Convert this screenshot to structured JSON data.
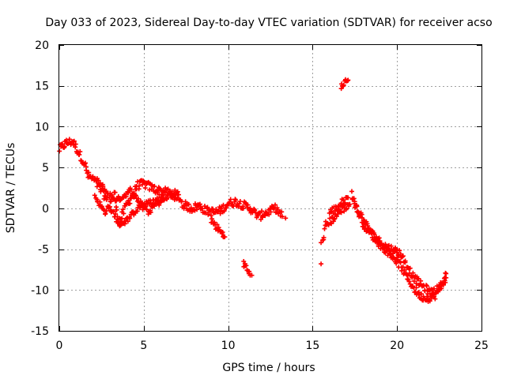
{
  "chart_data": {
    "type": "scatter",
    "title": "Day 033 of 2023, Sidereal Day-to-day VTEC variation (SDTVAR) for receiver acso",
    "xlabel": "GPS time / hours",
    "ylabel": "SDTVAR / TECUs",
    "xlim": [
      0,
      25
    ],
    "ylim": [
      -15,
      20
    ],
    "xticks": [
      0,
      5,
      10,
      15,
      20,
      25
    ],
    "yticks": [
      -15,
      -10,
      -5,
      0,
      5,
      10,
      15,
      20
    ],
    "grid": true,
    "marker": "plus",
    "color": "#ff0000",
    "series": [
      {
        "name": "SDTVAR",
        "anchors": [
          [
            0.0,
            7.2
          ],
          [
            0.4,
            8.0
          ],
          [
            0.8,
            8.2
          ],
          [
            1.1,
            7.0
          ],
          [
            1.5,
            5.5
          ],
          [
            1.7,
            4.0
          ],
          [
            2.0,
            3.6
          ],
          [
            2.3,
            2.8
          ],
          [
            2.7,
            1.5
          ],
          [
            3.0,
            0.0
          ],
          [
            3.3,
            -1.0
          ],
          [
            3.6,
            -1.5
          ],
          [
            4.0,
            0.5
          ],
          [
            4.3,
            1.5
          ],
          [
            4.6,
            2.8
          ],
          [
            5.0,
            3.0
          ],
          [
            5.4,
            2.6
          ],
          [
            5.8,
            2.2
          ],
          [
            6.3,
            2.0
          ],
          [
            6.7,
            1.8
          ],
          [
            7.0,
            1.7
          ],
          [
            7.3,
            0.5
          ],
          [
            7.8,
            0.0
          ],
          [
            8.3,
            0.3
          ],
          [
            8.7,
            -0.3
          ],
          [
            9.2,
            -0.5
          ],
          [
            9.6,
            -0.2
          ],
          [
            10.0,
            0.6
          ],
          [
            10.4,
            0.8
          ],
          [
            10.8,
            0.5
          ],
          [
            11.3,
            0.0
          ],
          [
            11.8,
            -1.0
          ],
          [
            12.3,
            -0.5
          ],
          [
            12.8,
            0.0
          ],
          [
            13.2,
            -1.0
          ]
        ],
        "anchors_b": [
          [
            2.2,
            3.5
          ],
          [
            2.6,
            2.5
          ],
          [
            3.0,
            1.6
          ],
          [
            3.4,
            1.0
          ],
          [
            3.8,
            1.5
          ],
          [
            4.2,
            2.2
          ],
          [
            4.6,
            1.2
          ],
          [
            5.0,
            0.4
          ],
          [
            5.5,
            0.8
          ],
          [
            6.0,
            1.2
          ],
          [
            6.5,
            1.6
          ],
          [
            7.0,
            1.3
          ]
        ],
        "anchors_c": [
          [
            2.1,
            1.5
          ],
          [
            2.4,
            0.5
          ],
          [
            2.7,
            -0.5
          ],
          [
            3.0,
            0.5
          ],
          [
            3.3,
            2.0
          ],
          [
            3.5,
            -2.0
          ],
          [
            4.0,
            -1.5
          ],
          [
            4.4,
            -0.5
          ],
          [
            4.8,
            0.3
          ],
          [
            5.3,
            -0.5
          ],
          [
            5.7,
            0.5
          ],
          [
            6.2,
            1.0
          ]
        ],
        "segments": [
          [
            [
              9.0,
              -1.5
            ],
            [
              9.4,
              -2.5
            ],
            [
              9.8,
              -3.5
            ]
          ],
          [
            [
              10.9,
              -6.5
            ],
            [
              11.1,
              -7.5
            ],
            [
              11.3,
              -8.2
            ]
          ],
          [
            [
              15.6,
              -4.0
            ],
            [
              15.8,
              -2.0
            ],
            [
              16.1,
              -1.5
            ],
            [
              16.4,
              -0.8
            ],
            [
              16.8,
              0.0
            ],
            [
              17.2,
              0.5
            ]
          ],
          [
            [
              16.0,
              -0.5
            ],
            [
              16.4,
              0.0
            ],
            [
              16.8,
              0.8
            ],
            [
              17.1,
              1.3
            ]
          ],
          [
            [
              17.3,
              1.8
            ],
            [
              17.6,
              0.0
            ],
            [
              18.0,
              -2.0
            ],
            [
              18.4,
              -3.0
            ],
            [
              18.8,
              -4.0
            ],
            [
              19.3,
              -5.0
            ],
            [
              19.8,
              -6.0
            ],
            [
              20.2,
              -7.0
            ],
            [
              20.6,
              -8.5
            ],
            [
              21.0,
              -9.8
            ],
            [
              21.4,
              -10.8
            ],
            [
              21.8,
              -11.0
            ],
            [
              22.2,
              -10.8
            ],
            [
              22.6,
              -9.5
            ],
            [
              22.9,
              -8.0
            ]
          ],
          [
            [
              17.5,
              0.5
            ],
            [
              17.9,
              -1.0
            ],
            [
              18.3,
              -2.5
            ],
            [
              18.7,
              -3.5
            ],
            [
              19.2,
              -4.5
            ],
            [
              19.7,
              -5.0
            ],
            [
              20.2,
              -5.5
            ],
            [
              20.6,
              -7.0
            ],
            [
              21.0,
              -8.5
            ],
            [
              21.5,
              -9.5
            ],
            [
              22.0,
              -10.3
            ],
            [
              22.5,
              -9.8
            ],
            [
              22.9,
              -8.5
            ]
          ],
          [
            [
              16.7,
              14.8
            ],
            [
              16.9,
              15.3
            ],
            [
              17.1,
              15.7
            ]
          ]
        ],
        "isolated": [
          [
            15.5,
            -6.8
          ],
          [
            15.5,
            -4.2
          ],
          [
            13.4,
            -1.2
          ],
          [
            11.4,
            -8.2
          ]
        ]
      }
    ]
  }
}
